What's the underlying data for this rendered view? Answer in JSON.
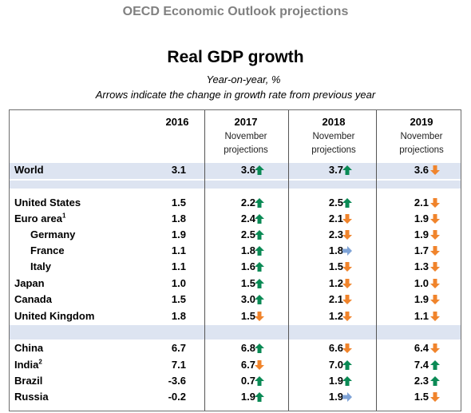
{
  "banner": "OECD Economic Outlook projections",
  "title": "Real GDP growth",
  "subtitle": "Year-on-year, %",
  "note": "Arrows indicate the change in growth rate from previous year",
  "columns": [
    {
      "year": "2016",
      "sub1": "",
      "sub2": ""
    },
    {
      "year": "2017",
      "sub1": "November",
      "sub2": "projections"
    },
    {
      "year": "2018",
      "sub1": "November",
      "sub2": "projections"
    },
    {
      "year": "2019",
      "sub1": "November",
      "sub2": "projections"
    }
  ],
  "colors": {
    "up": "#0b8a55",
    "down": "#f0842c",
    "same": "#7fa3d6",
    "band": "#dde4f1"
  },
  "rows": [
    {
      "label": "World",
      "sup": "",
      "indent": false,
      "v2016": "3.1",
      "v2017": "3.6",
      "a2017": "up",
      "v2018": "3.7",
      "a2018": "up",
      "v2019": "3.6",
      "a2019": "down"
    },
    {
      "label": "United States",
      "sup": "",
      "indent": false,
      "v2016": "1.5",
      "v2017": "2.2",
      "a2017": "up",
      "v2018": "2.5",
      "a2018": "up",
      "v2019": "2.1",
      "a2019": "down"
    },
    {
      "label": "Euro area",
      "sup": "1",
      "indent": false,
      "v2016": "1.8",
      "v2017": "2.4",
      "a2017": "up",
      "v2018": "2.1",
      "a2018": "down",
      "v2019": "1.9",
      "a2019": "down"
    },
    {
      "label": "Germany",
      "sup": "",
      "indent": true,
      "v2016": "1.9",
      "v2017": "2.5",
      "a2017": "up",
      "v2018": "2.3",
      "a2018": "down",
      "v2019": "1.9",
      "a2019": "down"
    },
    {
      "label": "France",
      "sup": "",
      "indent": true,
      "v2016": "1.1",
      "v2017": "1.8",
      "a2017": "up",
      "v2018": "1.8",
      "a2018": "same",
      "v2019": "1.7",
      "a2019": "down"
    },
    {
      "label": "Italy",
      "sup": "",
      "indent": true,
      "v2016": "1.1",
      "v2017": "1.6",
      "a2017": "up",
      "v2018": "1.5",
      "a2018": "down",
      "v2019": "1.3",
      "a2019": "down"
    },
    {
      "label": "Japan",
      "sup": "",
      "indent": false,
      "v2016": "1.0",
      "v2017": "1.5",
      "a2017": "up",
      "v2018": "1.2",
      "a2018": "down",
      "v2019": "1.0",
      "a2019": "down"
    },
    {
      "label": "Canada",
      "sup": "",
      "indent": false,
      "v2016": "1.5",
      "v2017": "3.0",
      "a2017": "up",
      "v2018": "2.1",
      "a2018": "down",
      "v2019": "1.9",
      "a2019": "down"
    },
    {
      "label": "United Kingdom",
      "sup": "",
      "indent": false,
      "v2016": "1.8",
      "v2017": "1.5",
      "a2017": "down",
      "v2018": "1.2",
      "a2018": "down",
      "v2019": "1.1",
      "a2019": "down"
    },
    {
      "label": "China",
      "sup": "",
      "indent": false,
      "v2016": "6.7",
      "v2017": "6.8",
      "a2017": "up",
      "v2018": "6.6",
      "a2018": "down",
      "v2019": "6.4",
      "a2019": "down"
    },
    {
      "label": "India",
      "sup": "2",
      "indent": false,
      "v2016": "7.1",
      "v2017": "6.7",
      "a2017": "down",
      "v2018": "7.0",
      "a2018": "up",
      "v2019": "7.4",
      "a2019": "up"
    },
    {
      "label": "Brazil",
      "sup": "",
      "indent": false,
      "v2016": "-3.6",
      "v2017": "0.7",
      "a2017": "up",
      "v2018": "1.9",
      "a2018": "up",
      "v2019": "2.3",
      "a2019": "up"
    },
    {
      "label": "Russia",
      "sup": "",
      "indent": false,
      "v2016": "-0.2",
      "v2017": "1.9",
      "a2017": "up",
      "v2018": "1.9",
      "a2018": "same",
      "v2019": "1.5",
      "a2019": "down"
    }
  ]
}
